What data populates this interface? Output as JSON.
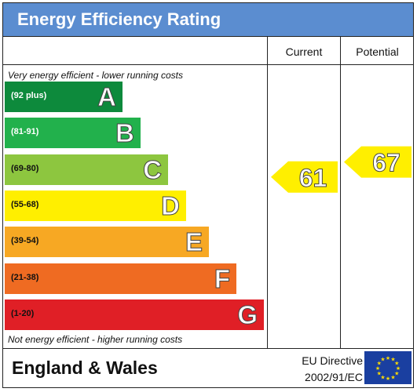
{
  "title": "Energy Efficiency Rating",
  "columns": {
    "current": "Current",
    "potential": "Potential"
  },
  "top_note": "Very energy efficient - lower running costs",
  "bottom_note": "Not energy efficient - higher running costs",
  "footer": {
    "country": "England & Wales",
    "directive_line1": "EU Directive",
    "directive_line2": "2002/91/EC"
  },
  "colors": {
    "header": "#5b8dd0",
    "rating_marker": "#ffef00",
    "flag_blue": "#1a3fa0",
    "flag_star": "#ffdd00"
  },
  "chart_data": {
    "type": "bar",
    "categories": [
      "A",
      "B",
      "C",
      "D",
      "E",
      "F",
      "G"
    ],
    "bands": [
      {
        "letter": "A",
        "range": "(92 plus)",
        "min": 92,
        "max": 100,
        "color": "#0d8a3c",
        "range_color": "#ffffff"
      },
      {
        "letter": "B",
        "range": "(81-91)",
        "min": 81,
        "max": 91,
        "color": "#22b14c",
        "range_color": "#ffffff"
      },
      {
        "letter": "C",
        "range": "(69-80)",
        "min": 69,
        "max": 80,
        "color": "#8dc63f",
        "range_color": "#111111"
      },
      {
        "letter": "D",
        "range": "(55-68)",
        "min": 55,
        "max": 68,
        "color": "#ffef00",
        "range_color": "#111111"
      },
      {
        "letter": "E",
        "range": "(39-54)",
        "min": 39,
        "max": 54,
        "color": "#f7a823",
        "range_color": "#111111"
      },
      {
        "letter": "F",
        "range": "(21-38)",
        "min": 21,
        "max": 38,
        "color": "#ef6b22",
        "range_color": "#111111"
      },
      {
        "letter": "G",
        "range": "(1-20)",
        "min": 1,
        "max": 20,
        "color": "#e01f26",
        "range_color": "#111111"
      }
    ],
    "series": [
      {
        "name": "Current",
        "value": 61,
        "band": "D"
      },
      {
        "name": "Potential",
        "value": 67,
        "band": "D"
      }
    ]
  }
}
